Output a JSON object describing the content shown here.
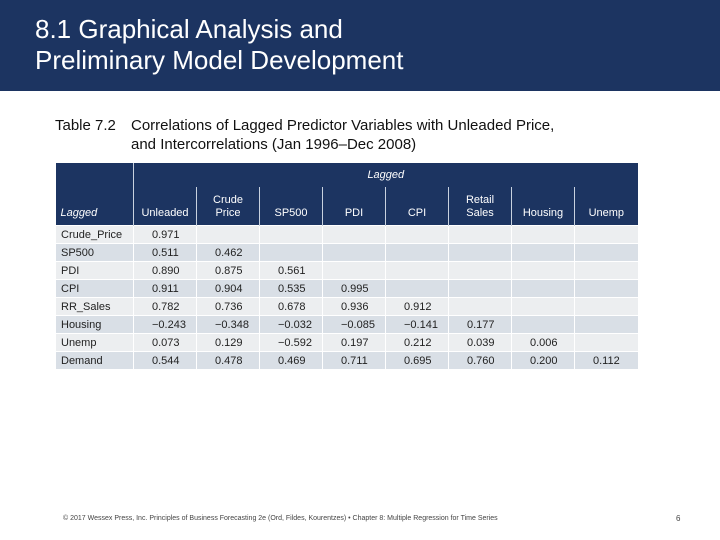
{
  "slide": {
    "title": "8.1 Graphical Analysis and\nPreliminary Model Development"
  },
  "table": {
    "label": "Table 7.2",
    "caption": "Correlations of Lagged Predictor Variables with Unleaded Price,\nand Intercorrelations (Jan 1996–Dec 2008)",
    "group_header": "Lagged",
    "row_header": "Lagged",
    "columns": [
      "Unleaded",
      "Crude\nPrice",
      "SP500",
      "PDI",
      "CPI",
      "Retail\nSales",
      "Housing",
      "Unemp"
    ],
    "rows": [
      {
        "label": "Crude_Price",
        "values": [
          "0.971",
          "",
          "",
          "",
          "",
          "",
          "",
          ""
        ]
      },
      {
        "label": "SP500",
        "values": [
          "0.511",
          "0.462",
          "",
          "",
          "",
          "",
          "",
          ""
        ]
      },
      {
        "label": "PDI",
        "values": [
          "0.890",
          "0.875",
          "0.561",
          "",
          "",
          "",
          "",
          ""
        ]
      },
      {
        "label": "CPI",
        "values": [
          "0.911",
          "0.904",
          "0.535",
          "0.995",
          "",
          "",
          "",
          ""
        ]
      },
      {
        "label": "RR_Sales",
        "values": [
          "0.782",
          "0.736",
          "0.678",
          "0.936",
          "0.912",
          "",
          "",
          ""
        ]
      },
      {
        "label": "Housing",
        "values": [
          "−0.243",
          "−0.348",
          "−0.032",
          "−0.085",
          "−0.141",
          "0.177",
          "",
          ""
        ]
      },
      {
        "label": "Unemp",
        "values": [
          "0.073",
          "0.129",
          "−0.592",
          "0.197",
          "0.212",
          "0.039",
          "0.006",
          ""
        ]
      },
      {
        "label": "Demand",
        "values": [
          "0.544",
          "0.478",
          "0.469",
          "0.711",
          "0.695",
          "0.760",
          "0.200",
          "0.112"
        ]
      }
    ]
  },
  "footer": {
    "text": "© 2017 Wessex Press, Inc. Principles of Business Forecasting 2e (Ord, Fildes, Kourentzes) • Chapter 8: Multiple Regression for Time Series",
    "page": "6"
  }
}
